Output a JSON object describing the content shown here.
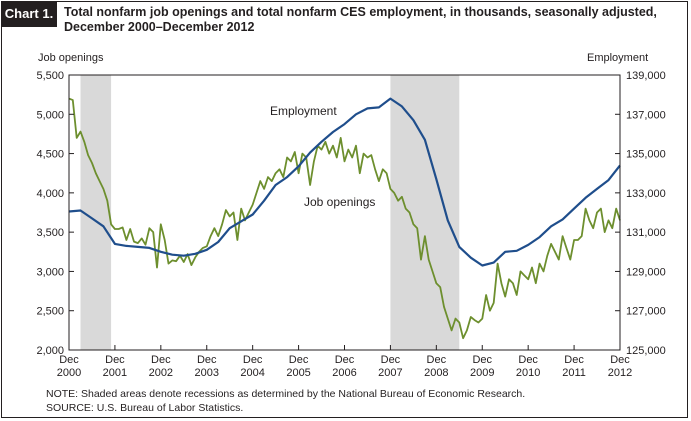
{
  "header": {
    "label": "Chart 1.",
    "title_line1": "Total nonfarm job openings and total nonfarm CES employment, in thousands, seasonally adjusted,",
    "title_line2": "December 2000–December 2012"
  },
  "footer": {
    "note": "NOTE:  Shaded areas denote recessions as determined by the National Bureau of Economic Research.",
    "source": "SOURCE:  U.S. Bureau of Labor Statistics."
  },
  "chart_data": {
    "type": "line",
    "title": "Total nonfarm job openings and total nonfarm CES employment, in thousands, seasonally adjusted, December 2000–December 2012",
    "y_left_label": "Job openings",
    "y_right_label": "Employment",
    "y_left_range": [
      2000,
      5500
    ],
    "y_left_ticks": [
      "2,000",
      "2,500",
      "3,000",
      "3,500",
      "4,000",
      "4,500",
      "5,000",
      "5,500"
    ],
    "y_right_range": [
      125000,
      139000
    ],
    "y_right_ticks": [
      "125,000",
      "127,000",
      "129,000",
      "131,000",
      "133,000",
      "135,000",
      "137,000",
      "139,000"
    ],
    "x_range": [
      "2000-12",
      "2012-12"
    ],
    "x_ticks": [
      {
        "top": "Dec",
        "bottom": "2000",
        "date": "2000-12"
      },
      {
        "top": "Dec",
        "bottom": "2001",
        "date": "2001-12"
      },
      {
        "top": "Dec",
        "bottom": "2002",
        "date": "2002-12"
      },
      {
        "top": "Dec",
        "bottom": "2003",
        "date": "2003-12"
      },
      {
        "top": "Dec",
        "bottom": "2004",
        "date": "2004-12"
      },
      {
        "top": "Dec",
        "bottom": "2005",
        "date": "2005-12"
      },
      {
        "top": "Dec",
        "bottom": "2006",
        "date": "2006-12"
      },
      {
        "top": "Dec",
        "bottom": "2007",
        "date": "2007-12"
      },
      {
        "top": "Dec",
        "bottom": "2008",
        "date": "2008-12"
      },
      {
        "top": "Dec",
        "bottom": "2009",
        "date": "2009-12"
      },
      {
        "top": "Dec",
        "bottom": "2010",
        "date": "2010-12"
      },
      {
        "top": "Dec",
        "bottom": "2011",
        "date": "2011-12"
      },
      {
        "top": "Dec",
        "bottom": "2012",
        "date": "2012-12"
      }
    ],
    "recessions": [
      {
        "start": "2001-03",
        "end": "2001-11"
      },
      {
        "start": "2007-12",
        "end": "2009-06"
      }
    ],
    "grid": false,
    "series": [
      {
        "name": "Job openings",
        "axis": "left",
        "color": "#6d8f2e",
        "points": [
          [
            "2000-12",
            5200
          ],
          [
            "2001-01",
            5180
          ],
          [
            "2001-02",
            4700
          ],
          [
            "2001-03",
            4780
          ],
          [
            "2001-04",
            4650
          ],
          [
            "2001-05",
            4480
          ],
          [
            "2001-06",
            4380
          ],
          [
            "2001-07",
            4250
          ],
          [
            "2001-08",
            4150
          ],
          [
            "2001-09",
            4050
          ],
          [
            "2001-10",
            3900
          ],
          [
            "2001-11",
            3600
          ],
          [
            "2001-12",
            3540
          ],
          [
            "2002-01",
            3540
          ],
          [
            "2002-02",
            3560
          ],
          [
            "2002-03",
            3400
          ],
          [
            "2002-04",
            3540
          ],
          [
            "2002-05",
            3380
          ],
          [
            "2002-06",
            3360
          ],
          [
            "2002-07",
            3420
          ],
          [
            "2002-08",
            3340
          ],
          [
            "2002-09",
            3550
          ],
          [
            "2002-10",
            3500
          ],
          [
            "2002-11",
            3050
          ],
          [
            "2002-12",
            3600
          ],
          [
            "2003-01",
            3400
          ],
          [
            "2003-02",
            3100
          ],
          [
            "2003-03",
            3140
          ],
          [
            "2003-04",
            3130
          ],
          [
            "2003-05",
            3200
          ],
          [
            "2003-06",
            3120
          ],
          [
            "2003-07",
            3220
          ],
          [
            "2003-08",
            3080
          ],
          [
            "2003-09",
            3180
          ],
          [
            "2003-10",
            3250
          ],
          [
            "2003-11",
            3300
          ],
          [
            "2003-12",
            3320
          ],
          [
            "2004-01",
            3450
          ],
          [
            "2004-02",
            3550
          ],
          [
            "2004-03",
            3450
          ],
          [
            "2004-04",
            3600
          ],
          [
            "2004-05",
            3780
          ],
          [
            "2004-06",
            3700
          ],
          [
            "2004-07",
            3750
          ],
          [
            "2004-08",
            3400
          ],
          [
            "2004-09",
            3800
          ],
          [
            "2004-10",
            3650
          ],
          [
            "2004-11",
            3750
          ],
          [
            "2004-12",
            3850
          ],
          [
            "2005-01",
            4000
          ],
          [
            "2005-02",
            4150
          ],
          [
            "2005-03",
            4050
          ],
          [
            "2005-04",
            4200
          ],
          [
            "2005-05",
            4150
          ],
          [
            "2005-06",
            4250
          ],
          [
            "2005-07",
            4300
          ],
          [
            "2005-08",
            4200
          ],
          [
            "2005-09",
            4450
          ],
          [
            "2005-10",
            4400
          ],
          [
            "2005-11",
            4520
          ],
          [
            "2005-12",
            4250
          ],
          [
            "2006-01",
            4500
          ],
          [
            "2006-02",
            4450
          ],
          [
            "2006-03",
            4100
          ],
          [
            "2006-04",
            4400
          ],
          [
            "2006-05",
            4600
          ],
          [
            "2006-06",
            4550
          ],
          [
            "2006-07",
            4650
          ],
          [
            "2006-08",
            4500
          ],
          [
            "2006-09",
            4600
          ],
          [
            "2006-10",
            4450
          ],
          [
            "2006-11",
            4700
          ],
          [
            "2006-12",
            4400
          ],
          [
            "2007-01",
            4550
          ],
          [
            "2007-02",
            4450
          ],
          [
            "2007-03",
            4600
          ],
          [
            "2007-04",
            4250
          ],
          [
            "2007-05",
            4500
          ],
          [
            "2007-06",
            4450
          ],
          [
            "2007-07",
            4480
          ],
          [
            "2007-08",
            4300
          ],
          [
            "2007-09",
            4150
          ],
          [
            "2007-10",
            4300
          ],
          [
            "2007-11",
            4250
          ],
          [
            "2007-12",
            4050
          ],
          [
            "2008-01",
            4000
          ],
          [
            "2008-02",
            3900
          ],
          [
            "2008-03",
            3950
          ],
          [
            "2008-04",
            3800
          ],
          [
            "2008-05",
            3750
          ],
          [
            "2008-06",
            3600
          ],
          [
            "2008-07",
            3550
          ],
          [
            "2008-08",
            3150
          ],
          [
            "2008-09",
            3450
          ],
          [
            "2008-10",
            3150
          ],
          [
            "2008-11",
            3000
          ],
          [
            "2008-12",
            2850
          ],
          [
            "2009-01",
            2800
          ],
          [
            "2009-02",
            2550
          ],
          [
            "2009-03",
            2400
          ],
          [
            "2009-04",
            2250
          ],
          [
            "2009-05",
            2400
          ],
          [
            "2009-06",
            2350
          ],
          [
            "2009-07",
            2150
          ],
          [
            "2009-08",
            2250
          ],
          [
            "2009-09",
            2420
          ],
          [
            "2009-10",
            2380
          ],
          [
            "2009-11",
            2350
          ],
          [
            "2009-12",
            2400
          ],
          [
            "2010-01",
            2700
          ],
          [
            "2010-02",
            2500
          ],
          [
            "2010-03",
            2600
          ],
          [
            "2010-04",
            3100
          ],
          [
            "2010-05",
            2850
          ],
          [
            "2010-06",
            2680
          ],
          [
            "2010-07",
            2900
          ],
          [
            "2010-08",
            2850
          ],
          [
            "2010-09",
            2700
          ],
          [
            "2010-10",
            3000
          ],
          [
            "2010-11",
            2950
          ],
          [
            "2010-12",
            2900
          ],
          [
            "2011-01",
            3050
          ],
          [
            "2011-02",
            2850
          ],
          [
            "2011-03",
            3100
          ],
          [
            "2011-04",
            3000
          ],
          [
            "2011-05",
            3200
          ],
          [
            "2011-06",
            3350
          ],
          [
            "2011-07",
            3250
          ],
          [
            "2011-08",
            3150
          ],
          [
            "2011-09",
            3450
          ],
          [
            "2011-10",
            3300
          ],
          [
            "2011-11",
            3150
          ],
          [
            "2011-12",
            3400
          ],
          [
            "2012-01",
            3400
          ],
          [
            "2012-02",
            3450
          ],
          [
            "2012-03",
            3800
          ],
          [
            "2012-04",
            3650
          ],
          [
            "2012-05",
            3550
          ],
          [
            "2012-06",
            3750
          ],
          [
            "2012-07",
            3800
          ],
          [
            "2012-08",
            3500
          ],
          [
            "2012-09",
            3650
          ],
          [
            "2012-10",
            3550
          ],
          [
            "2012-11",
            3800
          ],
          [
            "2012-12",
            3650
          ]
        ]
      },
      {
        "name": "Employment",
        "axis": "right",
        "color": "#1f4e8c",
        "points": [
          [
            "2000-12",
            132050
          ],
          [
            "2001-03",
            132100
          ],
          [
            "2001-06",
            131700
          ],
          [
            "2001-09",
            131300
          ],
          [
            "2001-12",
            130400
          ],
          [
            "2002-03",
            130300
          ],
          [
            "2002-06",
            130250
          ],
          [
            "2002-09",
            130200
          ],
          [
            "2002-12",
            130000
          ],
          [
            "2003-03",
            129850
          ],
          [
            "2003-06",
            129800
          ],
          [
            "2003-09",
            129900
          ],
          [
            "2003-12",
            130100
          ],
          [
            "2004-03",
            130500
          ],
          [
            "2004-06",
            131200
          ],
          [
            "2004-09",
            131550
          ],
          [
            "2004-12",
            131900
          ],
          [
            "2005-03",
            132600
          ],
          [
            "2005-06",
            133400
          ],
          [
            "2005-09",
            133800
          ],
          [
            "2005-12",
            134350
          ],
          [
            "2006-03",
            135050
          ],
          [
            "2006-06",
            135600
          ],
          [
            "2006-09",
            136100
          ],
          [
            "2006-12",
            136500
          ],
          [
            "2007-03",
            137000
          ],
          [
            "2007-06",
            137300
          ],
          [
            "2007-09",
            137350
          ],
          [
            "2007-12",
            137800
          ],
          [
            "2008-03",
            137400
          ],
          [
            "2008-06",
            136700
          ],
          [
            "2008-09",
            135700
          ],
          [
            "2008-12",
            133700
          ],
          [
            "2009-03",
            131600
          ],
          [
            "2009-06",
            130250
          ],
          [
            "2009-09",
            129700
          ],
          [
            "2009-12",
            129300
          ],
          [
            "2010-03",
            129450
          ],
          [
            "2010-06",
            130000
          ],
          [
            "2010-09",
            130050
          ],
          [
            "2010-12",
            130350
          ],
          [
            "2011-03",
            130750
          ],
          [
            "2011-06",
            131300
          ],
          [
            "2011-09",
            131650
          ],
          [
            "2011-12",
            132200
          ],
          [
            "2012-03",
            132750
          ],
          [
            "2012-06",
            133200
          ],
          [
            "2012-09",
            133650
          ],
          [
            "2012-12",
            134400
          ]
        ]
      }
    ],
    "annotations": [
      {
        "text": "Employment",
        "series": "Employment"
      },
      {
        "text": "Job openings",
        "series": "Job openings"
      }
    ]
  }
}
